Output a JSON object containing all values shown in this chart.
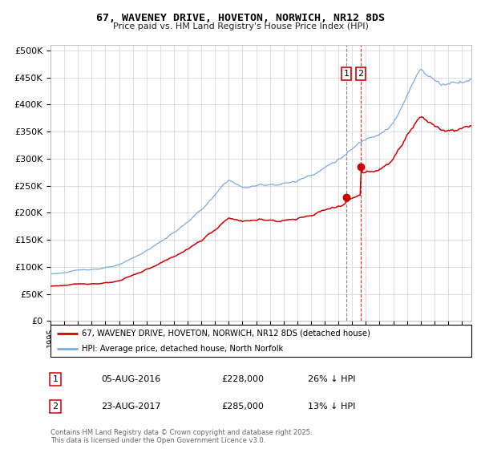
{
  "title1": "67, WAVENEY DRIVE, HOVETON, NORWICH, NR12 8DS",
  "title2": "Price paid vs. HM Land Registry's House Price Index (HPI)",
  "legend1": "67, WAVENEY DRIVE, HOVETON, NORWICH, NR12 8DS (detached house)",
  "legend2": "HPI: Average price, detached house, North Norfolk",
  "purchase1_date": "05-AUG-2016",
  "purchase1_price": 228000,
  "purchase1_pct": "26% ↓ HPI",
  "purchase2_date": "23-AUG-2017",
  "purchase2_price": 285000,
  "purchase2_pct": "13% ↓ HPI",
  "purchase1_year": 2016.58,
  "purchase2_year": 2017.63,
  "vline1_year": 2016.58,
  "vline2_year": 2017.63,
  "hpi_color": "#7aaadd",
  "price_color": "#cc0000",
  "footer": "Contains HM Land Registry data © Crown copyright and database right 2025.\nThis data is licensed under the Open Government Licence v3.0.",
  "ylim_max": 510000,
  "yticks": [
    0,
    50000,
    100000,
    150000,
    200000,
    250000,
    300000,
    350000,
    400000,
    450000,
    500000
  ],
  "xlim_min": 1995,
  "xlim_max": 2025.7
}
